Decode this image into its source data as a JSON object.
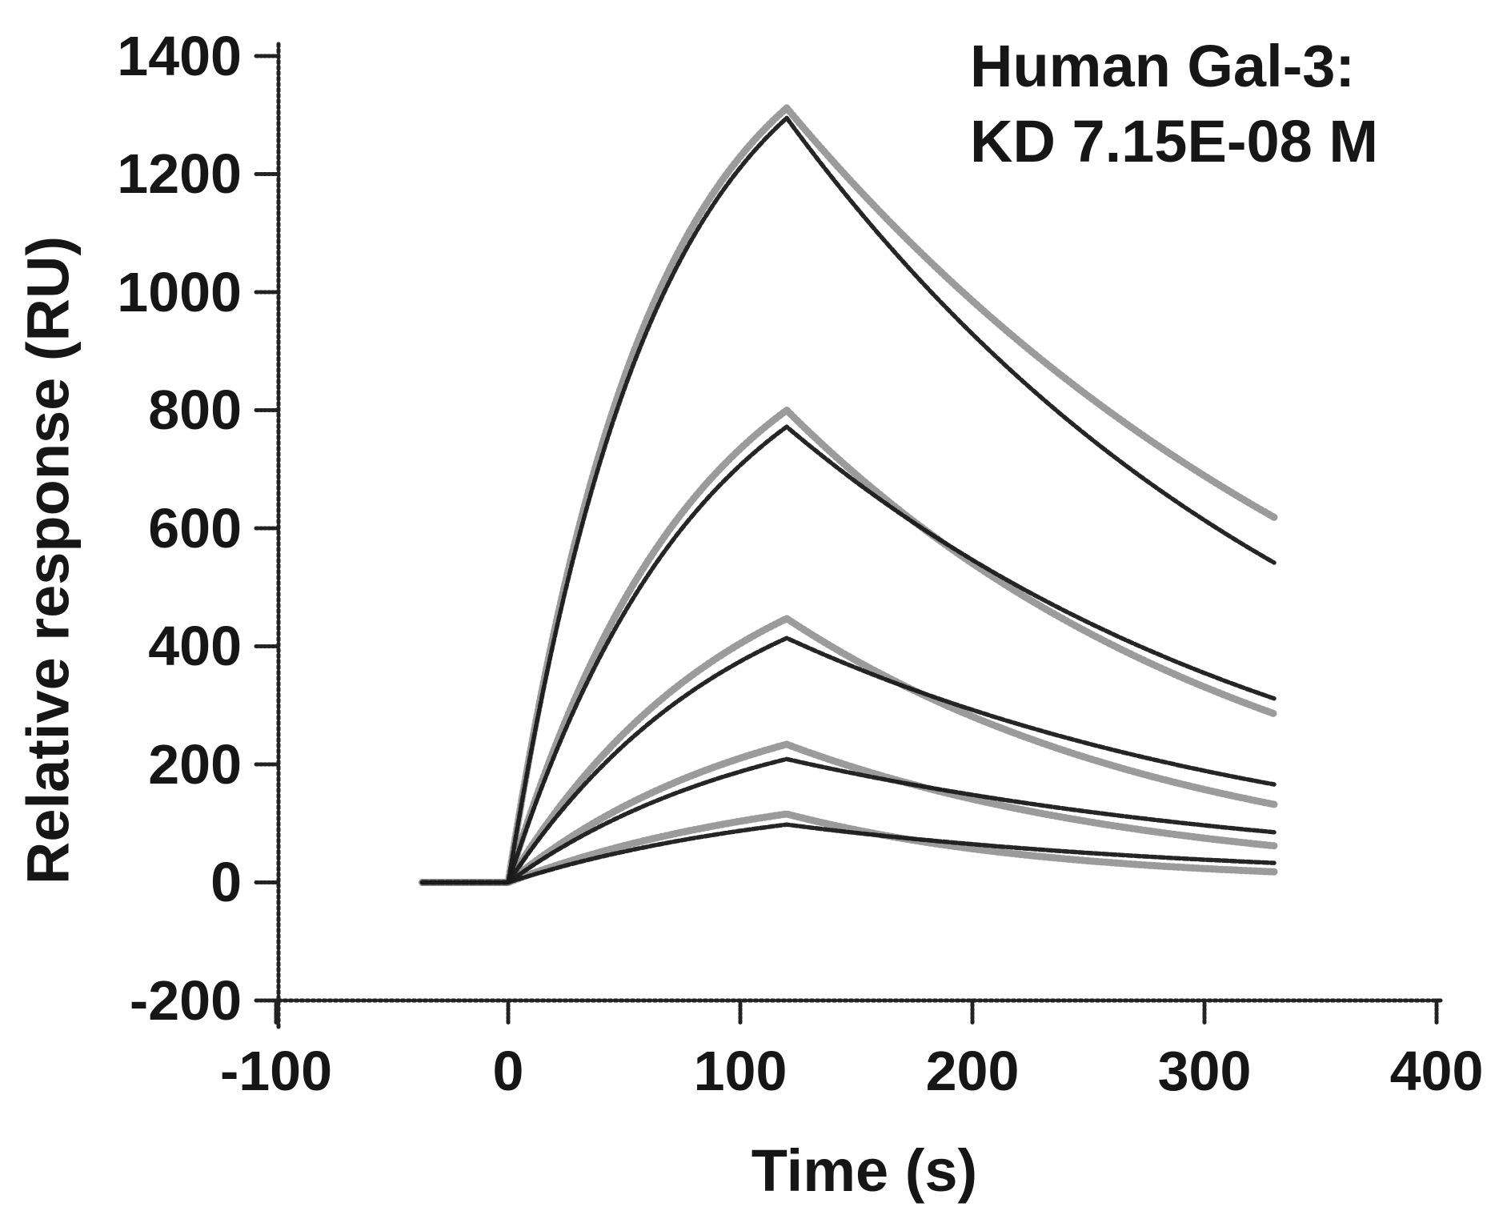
{
  "figure": {
    "annotation_line1": "Human Gal-3:",
    "annotation_line2": "KD 7.15E-08 M"
  },
  "chart_data": {
    "type": "line",
    "title": "Human Gal-3: KD 7.15E-08 M",
    "xlabel": "Time (s)",
    "ylabel": "Relative response (RU)",
    "xlim": [
      -150,
      430
    ],
    "ylim": [
      -200,
      1400
    ],
    "x_ticks": [
      -100,
      0,
      100,
      200,
      300,
      400
    ],
    "y_ticks": [
      1400,
      1200,
      1000,
      800,
      600,
      400,
      200,
      0,
      -200
    ],
    "grid": false,
    "legend_position": "none",
    "baseline_start_s": -37,
    "association_window_s": [
      0,
      120
    ],
    "curve_end_s": 330,
    "colors": {
      "fit_line": "#191919",
      "measured_line": "#8a8a8a",
      "axis": "#222222",
      "text": "#161616",
      "background": "#ffffff"
    },
    "series": [
      {
        "name": "concentration-1-highest",
        "measured": {
          "peak_RU": 1312,
          "end_RU": 618,
          "kobs_per_s": 0.0165,
          "kd_per_s": 0.00358
        },
        "fit": {
          "peak_RU": 1295,
          "end_RU": 542,
          "kobs_per_s": 0.016,
          "kd_per_s": 0.00415
        },
        "fit_points_t_s": [
          -37,
          0,
          15,
          30,
          45,
          60,
          75,
          90,
          105,
          120,
          150,
          180,
          210,
          240,
          270,
          300,
          330
        ],
        "fit_points_RU": [
          0,
          0,
          324,
          578,
          779,
          936,
          1060,
          1158,
          1234,
          1295,
          1143,
          1010,
          891,
          787,
          695,
          614,
          542
        ]
      },
      {
        "name": "concentration-2",
        "measured": {
          "peak_RU": 800,
          "end_RU": 286,
          "kobs_per_s": 0.0125,
          "kd_per_s": 0.0049
        },
        "fit": {
          "peak_RU": 772,
          "end_RU": 312,
          "kobs_per_s": 0.012,
          "kd_per_s": 0.00432
        },
        "fit_points_t_s": [
          -37,
          0,
          15,
          30,
          45,
          60,
          75,
          90,
          105,
          120,
          150,
          180,
          210,
          240,
          270,
          300,
          330
        ],
        "fit_points_RU": [
          0,
          0,
          167,
          306,
          422,
          519,
          600,
          668,
          725,
          772,
          678,
          596,
          523,
          460,
          404,
          355,
          312
        ]
      },
      {
        "name": "concentration-3",
        "measured": {
          "peak_RU": 447,
          "end_RU": 133,
          "kobs_per_s": 0.0102,
          "kd_per_s": 0.0058
        },
        "fit": {
          "peak_RU": 414,
          "end_RU": 166,
          "kobs_per_s": 0.01,
          "kd_per_s": 0.00435
        },
        "fit_points_t_s": [
          -37,
          0,
          15,
          30,
          45,
          60,
          75,
          90,
          105,
          120,
          150,
          180,
          210,
          240,
          270,
          300,
          330
        ],
        "fit_points_RU": [
          0,
          0,
          83,
          154,
          215,
          267,
          313,
          352,
          385,
          414,
          363,
          319,
          280,
          246,
          216,
          189,
          166
        ]
      },
      {
        "name": "concentration-4",
        "measured": {
          "peak_RU": 234,
          "end_RU": 62,
          "kobs_per_s": 0.0092,
          "kd_per_s": 0.00632
        },
        "fit": {
          "peak_RU": 209,
          "end_RU": 85,
          "kobs_per_s": 0.009,
          "kd_per_s": 0.00428
        },
        "fit_points_t_s": [
          -37,
          0,
          15,
          30,
          45,
          60,
          75,
          90,
          105,
          120,
          150,
          180,
          210,
          240,
          270,
          300,
          330
        ],
        "fit_points_RU": [
          0,
          0,
          40,
          75,
          105,
          132,
          155,
          176,
          193,
          209,
          184,
          162,
          142,
          125,
          110,
          97,
          85
        ]
      },
      {
        "name": "concentration-5-lowest",
        "measured": {
          "peak_RU": 116,
          "end_RU": 18,
          "kobs_per_s": 0.0082,
          "kd_per_s": 0.00887
        },
        "fit": {
          "peak_RU": 98,
          "end_RU": 33,
          "kobs_per_s": 0.008,
          "kd_per_s": 0.00518
        },
        "fit_points_t_s": [
          -37,
          0,
          15,
          30,
          45,
          60,
          75,
          90,
          105,
          120,
          150,
          180,
          210,
          240,
          270,
          300,
          330
        ],
        "fit_points_RU": [
          0,
          0,
          18,
          34,
          48,
          61,
          72,
          82,
          90,
          98,
          84,
          72,
          61,
          53,
          45,
          39,
          33
        ]
      }
    ]
  }
}
